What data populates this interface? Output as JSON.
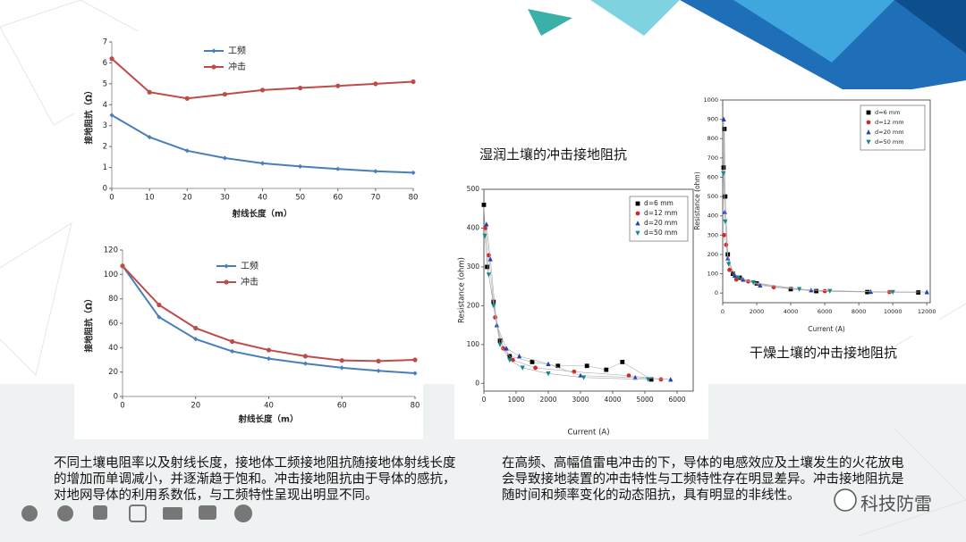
{
  "chart_data": [
    {
      "type": "line",
      "x": [
        0,
        10,
        20,
        30,
        40,
        50,
        60,
        70,
        80
      ],
      "xlim": [
        0,
        80
      ],
      "xticks": [
        0,
        10,
        20,
        30,
        40,
        50,
        60,
        70,
        80
      ],
      "ylim": [
        0,
        7
      ],
      "yticks": [
        0,
        1,
        2,
        3,
        4,
        5,
        6,
        7
      ],
      "xlabel": "射线长度（m）",
      "ylabel": "接地阻抗（Ω）",
      "legend": "upper center",
      "series": [
        {
          "name": "工频",
          "color": "#4a7ebb",
          "values": [
            3.5,
            2.45,
            1.8,
            1.45,
            1.2,
            1.05,
            0.93,
            0.82,
            0.75
          ]
        },
        {
          "name": "冲击",
          "color": "#be4b48",
          "values": [
            6.2,
            4.6,
            4.3,
            4.5,
            4.7,
            4.8,
            4.9,
            5.0,
            5.1
          ]
        }
      ]
    },
    {
      "type": "line",
      "x": [
        0,
        10,
        20,
        30,
        40,
        50,
        60,
        70,
        80
      ],
      "xlim": [
        0,
        80
      ],
      "xticks": [
        0,
        20,
        40,
        60,
        80
      ],
      "ylim": [
        0,
        120
      ],
      "yticks": [
        0,
        20,
        40,
        60,
        80,
        100,
        120
      ],
      "xlabel": "射线长度（m）",
      "ylabel": "接地阻抗（Ω）",
      "legend": "upper center",
      "series": [
        {
          "name": "工频",
          "color": "#4a7ebb",
          "values": [
            107,
            65,
            47,
            37,
            31,
            27,
            23.5,
            21,
            19
          ]
        },
        {
          "name": "冲击",
          "color": "#be4b48",
          "values": [
            107,
            75,
            56,
            45,
            38,
            33,
            29.5,
            29,
            30
          ]
        }
      ]
    },
    {
      "type": "scatter",
      "title": "湿润土壤的冲击接地阻抗",
      "xlabel": "Current (A)",
      "ylabel": "Resistance (ohm)",
      "legend": "upper right",
      "xlim": [
        0,
        6500
      ],
      "xticks": [
        0,
        1000,
        2000,
        3000,
        4000,
        5000,
        6000
      ],
      "ylim": [
        -20,
        500
      ],
      "yticks": [
        0,
        100,
        200,
        300,
        400,
        500
      ],
      "series": [
        {
          "name": "d=6 mm",
          "color": "#000000",
          "marker": "square",
          "x": [
            0,
            100,
            300,
            500,
            800,
            1500,
            2300,
            3200,
            3800,
            4300,
            5200
          ],
          "values": [
            460,
            300,
            210,
            110,
            70,
            55,
            45,
            45,
            35,
            55,
            10
          ]
        },
        {
          "name": "d=12 mm",
          "color": "#d62728",
          "marker": "circle",
          "x": [
            50,
            150,
            350,
            600,
            900,
            1600,
            2800,
            4500,
            5500
          ],
          "values": [
            400,
            330,
            170,
            90,
            60,
            40,
            30,
            20,
            10
          ]
        },
        {
          "name": "d=20 mm",
          "color": "#1f3fbf",
          "marker": "triangle",
          "x": [
            80,
            200,
            400,
            700,
            1100,
            2000,
            3000,
            4700,
            5800
          ],
          "values": [
            410,
            320,
            150,
            90,
            70,
            50,
            20,
            15,
            10
          ]
        },
        {
          "name": "d=50 mm",
          "color": "#138a8a",
          "marker": "down",
          "x": [
            30,
            150,
            300,
            500,
            800,
            1200,
            2000,
            3100,
            5100
          ],
          "values": [
            380,
            280,
            200,
            100,
            60,
            40,
            25,
            15,
            10
          ]
        }
      ]
    },
    {
      "type": "scatter",
      "title": "干燥土壤的冲击接地阻抗",
      "xlabel": "Current (A)",
      "ylabel": "Resistance (ohm)",
      "legend": "upper right",
      "xlim": [
        0,
        12200
      ],
      "xticks": [
        0,
        2000,
        4000,
        6000,
        8000,
        10000,
        12000
      ],
      "ylim": [
        -50,
        1000
      ],
      "yticks": [
        0,
        100,
        200,
        300,
        400,
        500,
        600,
        700,
        800,
        900,
        1000
      ],
      "series": [
        {
          "name": "d=6 mm",
          "color": "#000000",
          "marker": "square",
          "x": [
            50,
            100,
            150,
            300,
            600,
            1000,
            2000,
            4000,
            5500,
            8500,
            11500
          ],
          "values": [
            650,
            850,
            500,
            200,
            100,
            80,
            50,
            20,
            10,
            5,
            3
          ]
        },
        {
          "name": "d=12 mm",
          "color": "#d62728",
          "marker": "circle",
          "x": [
            80,
            200,
            400,
            800,
            1500,
            3000,
            6000,
            9800
          ],
          "values": [
            300,
            250,
            120,
            70,
            60,
            30,
            10,
            5
          ]
        },
        {
          "name": "d=20 mm",
          "color": "#1f3fbf",
          "marker": "triangle",
          "x": [
            60,
            120,
            300,
            700,
            1200,
            2200,
            5200,
            8700,
            12000
          ],
          "values": [
            900,
            420,
            180,
            90,
            70,
            40,
            15,
            7,
            5
          ]
        },
        {
          "name": "d=50 mm",
          "color": "#138a8a",
          "marker": "down",
          "x": [
            40,
            150,
            350,
            900,
            1800,
            4500,
            6300,
            10000
          ],
          "values": [
            620,
            370,
            150,
            80,
            55,
            20,
            10,
            5
          ]
        }
      ]
    }
  ],
  "paragraphs": [
    "不同土壤电阻率以及射线长度，接地体工频接地阻抗随接地体射线长度的增加而单调减小，并逐渐趋于饱和。冲击接地阻抗由于导体的感抗，对地网导体的利用系数低，与工频特性呈现出明显不同。",
    "在高频、高幅值雷电冲击的下，导体的电感效应及土壤发生的火花放电会导致接地装置的冲击特性与工频特性存在明显差异。冲击接地阻抗是随时间和频率变化的动态阻抗，具有明显的非线性。"
  ],
  "watermark": "科技防雷"
}
